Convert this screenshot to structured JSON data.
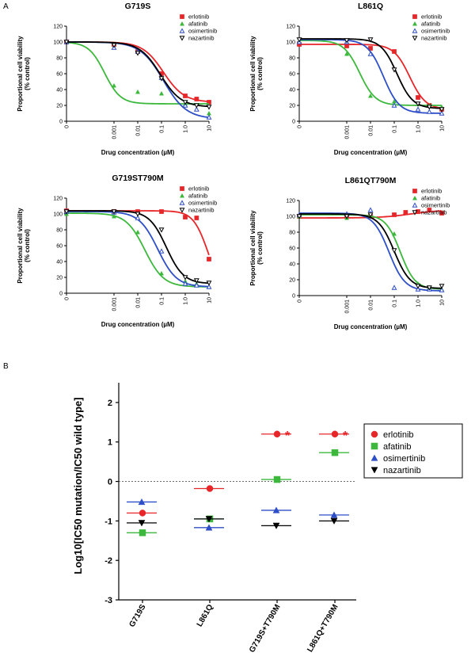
{
  "figure": {
    "panel_a_letter": "A",
    "panel_b_letter": "B"
  },
  "colors": {
    "erlotinib": "#e8262a",
    "afatinib": "#3cb93c",
    "osimertinib": "#2e4fc8",
    "nazartinib": "#000000"
  },
  "chart_data": [
    {
      "type": "scatter",
      "title": "G719S",
      "xlabel": "Drug concentration (µM)",
      "ylabel_line1": "Proportional cell viability",
      "ylabel_line2": "(% control)",
      "xscale": "log",
      "xlim": [
        1e-05,
        10
      ],
      "ylim": [
        0,
        120
      ],
      "yticks": [
        "0",
        "20",
        "40",
        "60",
        "80",
        "100",
        "120"
      ],
      "xticks": [
        "0",
        "0.001",
        "0.01",
        "0.1",
        "1.0",
        "10"
      ],
      "legend": [
        "erlotinib",
        "afatinib",
        "osimertinib",
        "nazartinib"
      ],
      "series": [
        {
          "name": "erlotinib",
          "marker": "square",
          "x": [
            1e-05,
            0.001,
            0.01,
            0.1,
            1,
            3,
            10
          ],
          "y": [
            100,
            97,
            88,
            60,
            32,
            28,
            24
          ],
          "fit": {
            "top": 100,
            "bottom": 24,
            "ic50": 0.12,
            "hill": 1.0
          }
        },
        {
          "name": "afatinib",
          "marker": "triangle",
          "x": [
            1e-05,
            0.001,
            0.01,
            0.1,
            1,
            3,
            10
          ],
          "y": [
            100,
            45,
            37,
            35,
            22,
            15,
            10
          ],
          "fit": {
            "top": 100,
            "bottom": 22,
            "ic50": 0.0004,
            "hill": 1.3
          }
        },
        {
          "name": "osimertinib",
          "marker": "triangle-open",
          "x": [
            1e-05,
            0.001,
            0.01,
            0.1,
            1,
            3,
            10
          ],
          "y": [
            100,
            93,
            88,
            55,
            20,
            15,
            5
          ],
          "fit": {
            "top": 100,
            "bottom": 3,
            "ic50": 0.12,
            "hill": 0.9
          }
        },
        {
          "name": "nazartinib",
          "marker": "triangle-down-open",
          "x": [
            1e-05,
            0.001,
            0.01,
            0.1,
            1,
            3,
            10
          ],
          "y": [
            100,
            96,
            86,
            54,
            24,
            20,
            18
          ],
          "fit": {
            "top": 100,
            "bottom": 18,
            "ic50": 0.09,
            "hill": 1.0
          }
        }
      ]
    },
    {
      "type": "scatter",
      "title": "L861Q",
      "xlabel": "Drug concentration (µM)",
      "ylabel_line1": "Proportional cell viability",
      "ylabel_line2": "(% control)",
      "xscale": "log",
      "xlim": [
        1e-05,
        10
      ],
      "ylim": [
        0,
        120
      ],
      "yticks": [
        "0",
        "20",
        "40",
        "60",
        "80",
        "100",
        "120"
      ],
      "xticks": [
        "0",
        "0.001",
        "0.01",
        "0.1",
        "1.0",
        "10"
      ],
      "legend": [
        "erlotinib",
        "afatinib",
        "osimertinib",
        "nazartinib"
      ],
      "series": [
        {
          "name": "erlotinib",
          "marker": "square",
          "x": [
            1e-05,
            0.001,
            0.01,
            0.1,
            1,
            3,
            10
          ],
          "y": [
            97,
            95,
            92,
            88,
            30,
            20,
            15
          ],
          "fit": {
            "top": 97,
            "bottom": 15,
            "ic50": 0.45,
            "hill": 1.3
          }
        },
        {
          "name": "afatinib",
          "marker": "triangle",
          "x": [
            1e-05,
            0.001,
            0.01,
            0.1,
            1,
            3,
            10
          ],
          "y": [
            100,
            85,
            32,
            25,
            22,
            20,
            18
          ],
          "fit": {
            "top": 102,
            "bottom": 20,
            "ic50": 0.0035,
            "hill": 1.3
          }
        },
        {
          "name": "osimertinib",
          "marker": "triangle-open",
          "x": [
            1e-05,
            0.001,
            0.01,
            0.1,
            1,
            3,
            10
          ],
          "y": [
            100,
            100,
            85,
            20,
            15,
            12,
            10
          ],
          "fit": {
            "top": 103,
            "bottom": 10,
            "ic50": 0.035,
            "hill": 1.3
          }
        },
        {
          "name": "nazartinib",
          "marker": "triangle-down-open",
          "x": [
            1e-05,
            0.001,
            0.01,
            0.1,
            1,
            3,
            10
          ],
          "y": [
            103,
            102,
            103,
            65,
            22,
            18,
            15
          ],
          "fit": {
            "top": 104,
            "bottom": 16,
            "ic50": 0.13,
            "hill": 1.3
          }
        }
      ]
    },
    {
      "type": "scatter",
      "title": "G719ST790M",
      "xlabel": "Drug concentration (µM)",
      "ylabel_line1": "Proportional cell viability",
      "ylabel_line2": "(% control)",
      "xscale": "log",
      "xlim": [
        1e-05,
        10
      ],
      "ylim": [
        0,
        120
      ],
      "yticks": [
        "0",
        "20",
        "40",
        "60",
        "80",
        "100",
        "120"
      ],
      "xticks": [
        "0",
        "0.001",
        "0.01",
        "0.1",
        "1.0",
        "10"
      ],
      "legend": [
        "erlotinib",
        "afatinib",
        "osimertinib",
        "nazartinib"
      ],
      "series": [
        {
          "name": "erlotinib",
          "marker": "square",
          "x": [
            1e-05,
            0.001,
            0.01,
            0.1,
            1,
            3,
            10
          ],
          "y": [
            104,
            103,
            103,
            103,
            96,
            95,
            43
          ],
          "fit": {
            "top": 104,
            "bottom": 0,
            "ic50": 9,
            "hill": 1.4
          }
        },
        {
          "name": "afatinib",
          "marker": "triangle",
          "x": [
            1e-05,
            0.001,
            0.01,
            0.1,
            1,
            3,
            10
          ],
          "y": [
            100,
            97,
            77,
            25,
            15,
            12,
            8
          ],
          "fit": {
            "top": 101,
            "bottom": 8,
            "ic50": 0.02,
            "hill": 1.1
          }
        },
        {
          "name": "osimertinib",
          "marker": "triangle-open",
          "x": [
            1e-05,
            0.001,
            0.01,
            0.1,
            1,
            3,
            10
          ],
          "y": [
            103,
            102,
            95,
            53,
            12,
            10,
            8
          ],
          "fit": {
            "top": 103,
            "bottom": 8,
            "ic50": 0.07,
            "hill": 1.1
          }
        },
        {
          "name": "nazartinib",
          "marker": "triangle-down-open",
          "x": [
            1e-05,
            0.001,
            0.01,
            0.1,
            1,
            3,
            10
          ],
          "y": [
            103,
            103,
            100,
            80,
            20,
            16,
            13
          ],
          "fit": {
            "top": 104,
            "bottom": 12,
            "ic50": 0.16,
            "hill": 1.2
          }
        }
      ]
    },
    {
      "type": "scatter",
      "title": "L861QT790M",
      "xlabel": "Drug concentration (µM)",
      "ylabel_line1": "Proportional cell viability",
      "ylabel_line2": "(% control)",
      "xscale": "log",
      "xlim": [
        1e-05,
        10
      ],
      "ylim": [
        0,
        120
      ],
      "yticks": [
        "0",
        "20",
        "40",
        "60",
        "80",
        "100",
        "120"
      ],
      "xticks": [
        "0",
        "0.001",
        "0.01",
        "0.1",
        "1.0",
        "10"
      ],
      "legend": [
        "erlotinib",
        "afatinib",
        "osimertinib",
        "nazartinib"
      ],
      "series": [
        {
          "name": "erlotinib",
          "marker": "square",
          "x": [
            1e-05,
            0.001,
            0.01,
            0.1,
            0.3,
            1,
            3,
            10
          ],
          "y": [
            100,
            100,
            100,
            102,
            105,
            106,
            108,
            104
          ],
          "fit": {
            "top": 98,
            "bottom": 108,
            "ic50": 0.5,
            "hill": 0.7
          }
        },
        {
          "name": "afatinib",
          "marker": "triangle",
          "x": [
            1e-05,
            0.001,
            0.01,
            0.1,
            1,
            3,
            10
          ],
          "y": [
            100,
            98,
            100,
            78,
            15,
            10,
            8
          ],
          "fit": {
            "top": 102,
            "bottom": 8,
            "ic50": 0.18,
            "hill": 1.4
          }
        },
        {
          "name": "osimertinib",
          "marker": "triangle-open",
          "x": [
            1e-05,
            0.001,
            0.01,
            0.1,
            1,
            3,
            10
          ],
          "y": [
            102,
            103,
            108,
            10,
            8,
            8,
            7
          ],
          "fit": {
            "top": 104,
            "bottom": 6,
            "ic50": 0.06,
            "hill": 1.3
          }
        },
        {
          "name": "nazartinib",
          "marker": "triangle-down-open",
          "x": [
            1e-05,
            0.001,
            0.01,
            0.1,
            1,
            3,
            10
          ],
          "y": [
            100,
            100,
            102,
            57,
            12,
            10,
            12
          ],
          "fit": {
            "top": 103,
            "bottom": 9,
            "ic50": 0.1,
            "hill": 1.3
          }
        }
      ]
    },
    {
      "type": "scatter",
      "title": "",
      "ylabel": "Log10[IC50 mutation/IC50 wild type]",
      "ylim": [
        -3,
        2.5
      ],
      "yticks": [
        "2",
        "1",
        "0",
        "-1",
        "-2",
        "-3"
      ],
      "categories": [
        "G719S",
        "L861Q",
        "G719S+T790M",
        "L861Q+T790M"
      ],
      "reference_line": 0,
      "significance": [
        "",
        "",
        "*",
        "*"
      ],
      "legend": [
        "erlotinib",
        "afatinib",
        "osimertinib",
        "nazartinib"
      ],
      "series": [
        {
          "name": "erlotinib",
          "marker": "circle",
          "values": [
            -0.8,
            -0.18,
            1.2,
            1.2
          ]
        },
        {
          "name": "afatinib",
          "marker": "square",
          "values": [
            -1.3,
            -0.95,
            0.05,
            0.73
          ]
        },
        {
          "name": "osimertinib",
          "marker": "triangle",
          "values": [
            -0.52,
            -1.17,
            -0.73,
            -0.85
          ]
        },
        {
          "name": "nazartinib",
          "marker": "triangle-down",
          "values": [
            -1.05,
            -0.95,
            -1.12,
            -1.0
          ]
        }
      ]
    }
  ]
}
